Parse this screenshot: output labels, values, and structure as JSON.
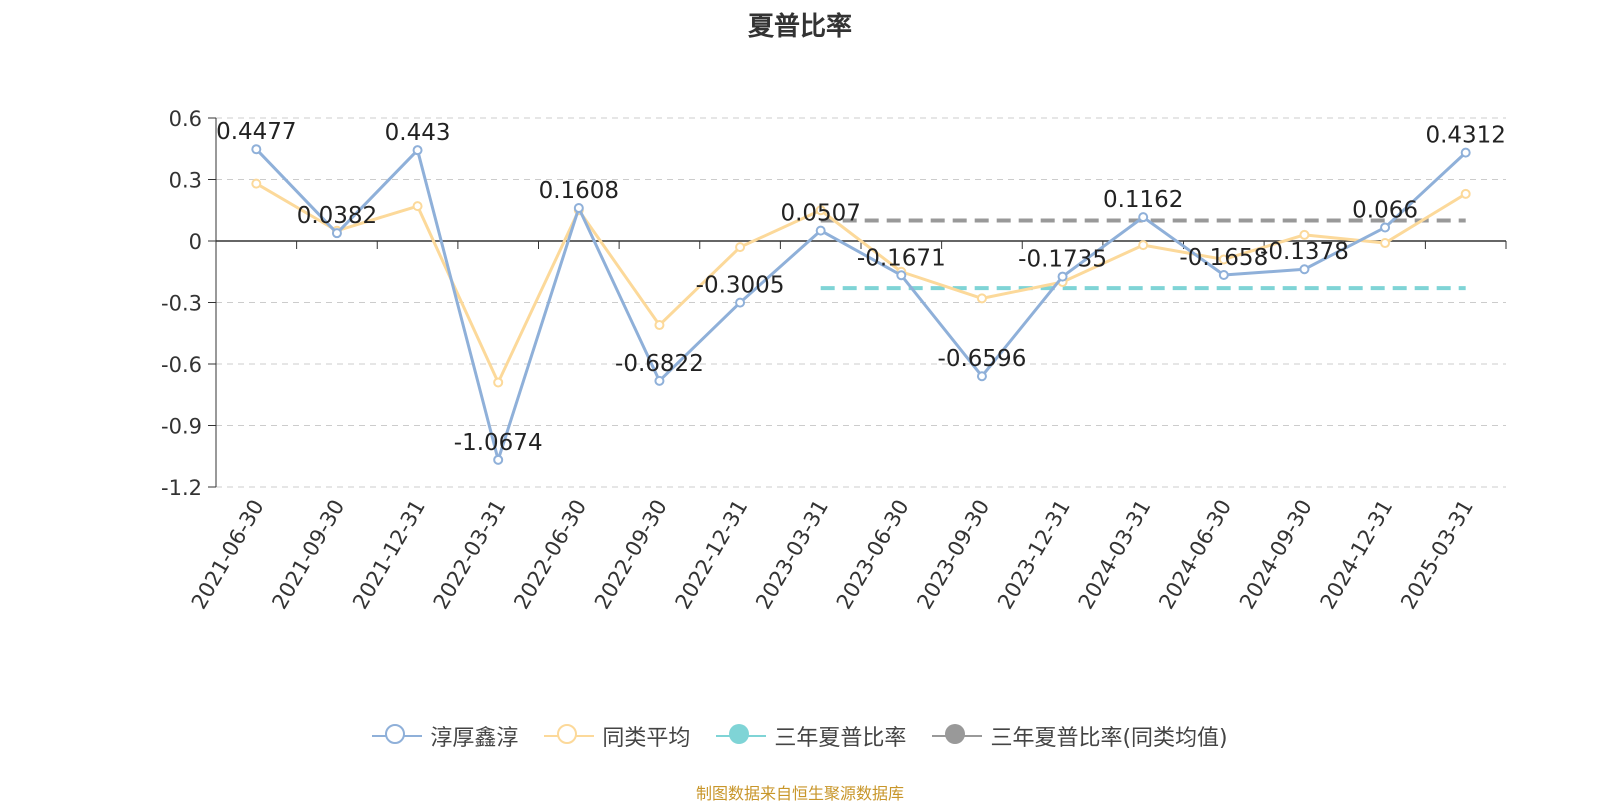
{
  "chart_data": {
    "type": "line",
    "title": "夏普比率",
    "categories": [
      "2021-06-30",
      "2021-09-30",
      "2021-12-31",
      "2022-03-31",
      "2022-06-30",
      "2022-09-30",
      "2022-12-31",
      "2023-03-31",
      "2023-06-30",
      "2023-09-30",
      "2023-12-31",
      "2024-03-31",
      "2024-06-30",
      "2024-09-30",
      "2024-12-31",
      "2025-03-31"
    ],
    "ylim": [
      -1.2,
      0.6
    ],
    "yticks": [
      "0.6",
      "0.3",
      "0",
      "-0.3",
      "-0.6",
      "-0.9",
      "-1.2"
    ],
    "grid": true,
    "legend_position": "bottom",
    "series": [
      {
        "name": "淳厚鑫淳",
        "color": "#8fb0d9",
        "values": [
          0.4477,
          0.0382,
          0.443,
          -1.0674,
          0.1608,
          -0.6822,
          -0.3005,
          0.0507,
          -0.1671,
          -0.6596,
          -0.1735,
          0.1162,
          -0.1658,
          -0.1378,
          0.066,
          0.4312
        ],
        "labels": [
          "0.4477",
          "0.0382",
          "0.443",
          "-1.0674",
          "0.1608",
          "-0.6822",
          "-0.3005",
          "0.0507",
          "-0.1671",
          "-0.6596",
          "-0.1735",
          "0.1162",
          "-0.1658",
          "-0.1378",
          "0.066",
          "0.4312"
        ]
      },
      {
        "name": "同类平均",
        "color": "#fcd99a",
        "values": [
          0.28,
          0.05,
          0.17,
          -0.69,
          0.15,
          -0.41,
          -0.03,
          0.15,
          -0.15,
          -0.28,
          -0.2,
          -0.02,
          -0.09,
          0.03,
          -0.01,
          0.23
        ]
      },
      {
        "name": "三年夏普比率",
        "color": "#7fd4d6",
        "type": "reference-line",
        "value": -0.23,
        "from_category": "2023-03-31",
        "to_category": "2025-03-31"
      },
      {
        "name": "三年夏普比率(同类均值)",
        "color": "#999999",
        "type": "reference-line",
        "value": 0.1,
        "from_category": "2023-03-31",
        "to_category": "2025-03-31"
      }
    ]
  },
  "legend": [
    {
      "name": "淳厚鑫淳",
      "color": "#8fb0d9",
      "style": "hollow"
    },
    {
      "name": "同类平均",
      "color": "#fcd99a",
      "style": "hollow"
    },
    {
      "name": "三年夏普比率",
      "color": "#7fd4d6",
      "style": "filled"
    },
    {
      "name": "三年夏普比率(同类均值)",
      "color": "#999999",
      "style": "filled"
    }
  ],
  "source_text": "制图数据来自恒生聚源数据库"
}
